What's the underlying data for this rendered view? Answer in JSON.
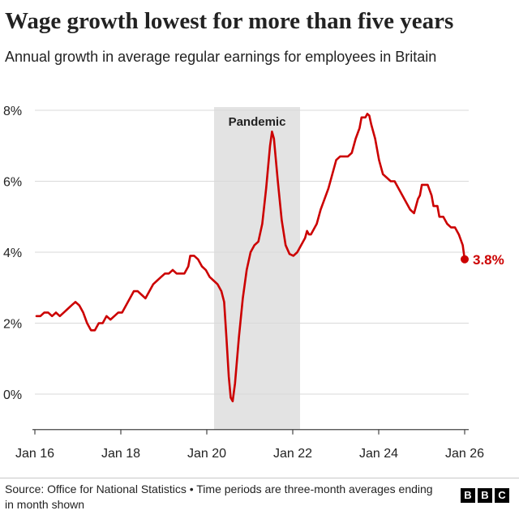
{
  "header": {
    "title": "Wage growth lowest for more than five years",
    "subtitle": "Annual growth in average regular earnings for employees in Britain"
  },
  "footer": {
    "source": "Source: Office for National Statistics • Time periods are three-month averages ending in month shown",
    "logo_letters": [
      "B",
      "B",
      "C"
    ]
  },
  "colors": {
    "line": "#cc0000",
    "shade": "#e3e3e3",
    "text": "#222222",
    "grid": "#d9d9d9"
  },
  "chart_data": {
    "type": "line",
    "xlabel": "",
    "ylabel": "",
    "xlim": [
      2016.0,
      2026.0
    ],
    "ylim": [
      -1.0,
      8.0
    ],
    "x_ticks": [
      {
        "x": 2016,
        "label": "Jan 16"
      },
      {
        "x": 2018,
        "label": "Jan 18"
      },
      {
        "x": 2020,
        "label": "Jan 20"
      },
      {
        "x": 2022,
        "label": "Jan 22"
      },
      {
        "x": 2024,
        "label": "Jan 24"
      },
      {
        "x": 2026,
        "label": "Jan 26"
      }
    ],
    "y_ticks": [
      {
        "y": 8,
        "label": "8%"
      },
      {
        "y": 6,
        "label": "6%"
      },
      {
        "y": 4,
        "label": "4%"
      },
      {
        "y": 2,
        "label": "2%"
      },
      {
        "y": 0,
        "label": "0%"
      }
    ],
    "shaded_region": {
      "label": "Pandemic",
      "x_start": 2020.17,
      "x_end": 2022.17
    },
    "end_label": "3.8%",
    "series": [
      {
        "values": [
          [
            2016.0,
            2.2
          ],
          [
            2016.1,
            2.2
          ],
          [
            2016.2,
            2.3
          ],
          [
            2016.3,
            2.3
          ],
          [
            2016.4,
            2.2
          ],
          [
            2016.5,
            2.3
          ],
          [
            2016.6,
            2.2
          ],
          [
            2016.7,
            2.3
          ],
          [
            2016.8,
            2.4
          ],
          [
            2016.9,
            2.5
          ],
          [
            2017.0,
            2.6
          ],
          [
            2017.1,
            2.5
          ],
          [
            2017.2,
            2.3
          ],
          [
            2017.3,
            2.0
          ],
          [
            2017.4,
            1.8
          ],
          [
            2017.5,
            1.8
          ],
          [
            2017.6,
            2.0
          ],
          [
            2017.7,
            2.0
          ],
          [
            2017.8,
            2.2
          ],
          [
            2017.9,
            2.1
          ],
          [
            2018.0,
            2.2
          ],
          [
            2018.1,
            2.3
          ],
          [
            2018.2,
            2.3
          ],
          [
            2018.3,
            2.5
          ],
          [
            2018.4,
            2.7
          ],
          [
            2018.5,
            2.9
          ],
          [
            2018.6,
            2.9
          ],
          [
            2018.7,
            2.8
          ],
          [
            2018.8,
            2.7
          ],
          [
            2018.9,
            2.9
          ],
          [
            2019.0,
            3.1
          ],
          [
            2019.1,
            3.2
          ],
          [
            2019.2,
            3.3
          ],
          [
            2019.3,
            3.4
          ],
          [
            2019.4,
            3.4
          ],
          [
            2019.5,
            3.5
          ],
          [
            2019.6,
            3.4
          ],
          [
            2019.7,
            3.4
          ],
          [
            2019.8,
            3.4
          ],
          [
            2019.9,
            3.6
          ],
          [
            2019.95,
            3.9
          ],
          [
            2020.05,
            3.9
          ],
          [
            2020.15,
            3.8
          ],
          [
            2020.25,
            3.6
          ],
          [
            2020.35,
            3.5
          ],
          [
            2020.45,
            3.3
          ],
          [
            2020.55,
            3.2
          ],
          [
            2020.65,
            3.1
          ],
          [
            2020.75,
            2.9
          ],
          [
            2020.82,
            2.6
          ],
          [
            2020.88,
            1.6
          ],
          [
            2020.94,
            0.5
          ],
          [
            2020.99,
            -0.1
          ],
          [
            2021.04,
            -0.2
          ],
          [
            2021.1,
            0.3
          ],
          [
            2021.2,
            1.6
          ],
          [
            2021.3,
            2.7
          ],
          [
            2021.4,
            3.5
          ],
          [
            2021.5,
            4.0
          ],
          [
            2021.6,
            4.2
          ],
          [
            2021.7,
            4.3
          ],
          [
            2021.8,
            4.8
          ],
          [
            2021.9,
            5.8
          ],
          [
            2022.0,
            7.0
          ],
          [
            2022.05,
            7.4
          ],
          [
            2022.1,
            7.2
          ],
          [
            2022.2,
            6.0
          ],
          [
            2022.3,
            4.9
          ],
          [
            2022.4,
            4.2
          ],
          [
            2022.5,
            3.95
          ],
          [
            2022.6,
            3.9
          ],
          [
            2022.7,
            4.0
          ],
          [
            2022.8,
            4.2
          ],
          [
            2022.9,
            4.4
          ],
          [
            2022.95,
            4.6
          ],
          [
            2023.0,
            4.5
          ],
          [
            2023.05,
            4.5
          ],
          [
            2023.1,
            4.6
          ],
          [
            2023.2,
            4.8
          ],
          [
            2023.3,
            5.2
          ],
          [
            2023.4,
            5.5
          ],
          [
            2023.5,
            5.8
          ],
          [
            2023.6,
            6.2
          ],
          [
            2023.7,
            6.6
          ],
          [
            2023.8,
            6.7
          ],
          [
            2023.9,
            6.7
          ],
          [
            2024.0,
            6.7
          ],
          [
            2024.1,
            6.8
          ],
          [
            2024.2,
            7.2
          ],
          [
            2024.3,
            7.5
          ],
          [
            2024.35,
            7.8
          ],
          [
            2024.45,
            7.8
          ],
          [
            2024.5,
            7.9
          ],
          [
            2024.55,
            7.85
          ],
          [
            2024.6,
            7.6
          ],
          [
            2024.7,
            7.2
          ],
          [
            2024.8,
            6.6
          ],
          [
            2024.9,
            6.2
          ],
          [
            2025.0,
            6.1
          ],
          [
            2025.1,
            6.0
          ],
          [
            2025.2,
            6.0
          ],
          [
            2025.3,
            5.8
          ],
          [
            2025.4,
            5.6
          ],
          [
            2025.5,
            5.4
          ],
          [
            2025.6,
            5.2
          ],
          [
            2025.7,
            5.1
          ],
          [
            2025.75,
            5.3
          ],
          [
            2025.8,
            5.5
          ],
          [
            2025.85,
            5.6
          ],
          [
            2025.9,
            5.9
          ],
          [
            2026.0,
            5.9
          ],
          [
            2026.05,
            5.9
          ],
          [
            2026.15,
            5.6
          ],
          [
            2026.2,
            5.3
          ],
          [
            2026.3,
            5.3
          ],
          [
            2026.35,
            5.0
          ],
          [
            2026.45,
            5.0
          ],
          [
            2026.55,
            4.8
          ],
          [
            2026.65,
            4.7
          ],
          [
            2026.75,
            4.7
          ],
          [
            2026.85,
            4.5
          ],
          [
            2026.95,
            4.2
          ],
          [
            2027.0,
            3.8
          ]
        ]
      }
    ]
  }
}
